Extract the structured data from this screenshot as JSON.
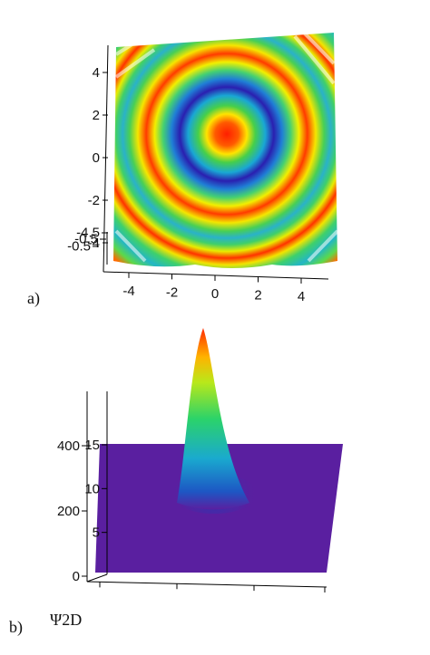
{
  "chart_data": [
    {
      "type": "surface",
      "panel_label": "a)",
      "view": "top-down 3D surface, rainbow coloring",
      "x_ticks": [
        "-4",
        "-2",
        "0",
        "2",
        "4"
      ],
      "y_ticks": [
        "4",
        "2",
        "0",
        "-2",
        "-4"
      ],
      "z_ticks": [
        "-0.5",
        "-0.5",
        "-4.5"
      ],
      "xlim": [
        -5,
        5
      ],
      "ylim": [
        -5,
        5
      ],
      "peak_center": [
        0.5,
        1.0
      ],
      "ring_radii": [
        1.5,
        3.0,
        4.5
      ]
    },
    {
      "type": "surface",
      "panel_label": "b)",
      "title": "Ψ2D",
      "view": "3D perspective surface, single Gaussian peak on flat purple base",
      "z_ticks_left": [
        "400",
        "200",
        "0"
      ],
      "z_ticks_inner": [
        "15",
        "10",
        "5"
      ],
      "zlim": [
        0,
        480
      ]
    }
  ],
  "colors": {
    "high": "#ff2a00",
    "mid_high": "#ffe100",
    "mid": "#5bd85b",
    "low": "#1a7bd8",
    "base": "#5a1fa0",
    "axis": "#000000"
  }
}
